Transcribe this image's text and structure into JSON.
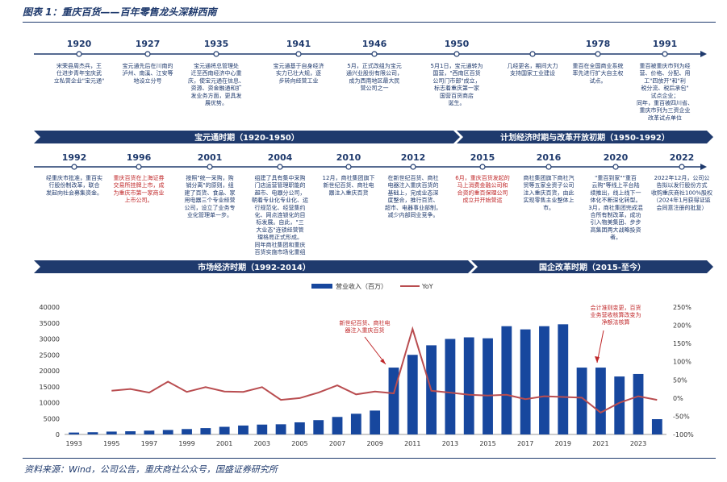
{
  "title": "图表 1：重庆百货——百年零售龙头深耕西南",
  "source": "资料来源：Wind，公司公告，重庆商社公众号，国盛证券研究所",
  "colors": {
    "navy": "#1f3a6d",
    "bar": "#17479e",
    "line": "#b94d50",
    "red": "#c0282a"
  },
  "timeline_top": {
    "events": [
      {
        "year": "1920",
        "lines": [
          "宋荣县周杰兵，王",
          "仕进步青年宝庆武",
          "立私营企业\"宝元通\""
        ],
        "red": false
      },
      {
        "year": "1927",
        "lines": [
          "宝元通先后在川南的",
          "泸州、南溪、江安等",
          "地设立分号"
        ],
        "red": false
      },
      {
        "year": "1935",
        "lines": [
          "宝元通将总管理处",
          "迁至西南经济中心重",
          "庆，使宝元通在信息、",
          "资源、资金融通和扩",
          "发业务方面，更具发",
          "展优势。"
        ],
        "red": false
      },
      {
        "year": "1941",
        "lines": [
          "宝元通基于自身经济",
          "实力已壮大规，逐",
          "步转向经营工业"
        ],
        "red": false
      },
      {
        "year": "1946",
        "lines": [
          "5月，正式改组为宝元",
          "通兴业股份有限公司，",
          "成为西南地区最大民",
          "营公司之一"
        ],
        "red": false
      },
      {
        "year": "1950",
        "lines": [
          "5月1日，宝元通转为",
          "国营，\"西南区百货",
          "公司门市部\"成立，",
          "标志着重庆第一家",
          "国营百货商店",
          "诞生。"
        ],
        "red": false
      },
      {
        "year": "",
        "lines": [
          "几经更名，期间大力",
          "支持国家工业建设"
        ],
        "red": false
      },
      {
        "year": "1978",
        "lines": [
          "重百在全国商业系统",
          "率先进行扩大自主权",
          "试点。"
        ],
        "red": false
      },
      {
        "year": "1991",
        "lines": [
          "重百被重庆市列为经",
          "营、价格、分配、用",
          "工\"四放开\"和\"利",
          "税分流、税后承包\"",
          "试点企业；",
          "同年，重百被四川省、",
          "重庆市列为三资企业",
          "改革试点单位"
        ],
        "red": false
      }
    ],
    "bands": [
      {
        "label": "宝元通时期（1920-1950）"
      },
      {
        "label": "计划经济时期与改革开放初期（1950-1992）"
      }
    ]
  },
  "timeline_bottom": {
    "events": [
      {
        "year": "1992",
        "lines": [
          "经重庆市批准，重百实",
          "行股份制改革，联合",
          "发起向社会募集资金。"
        ],
        "red": false
      },
      {
        "year": "1996",
        "lines": [
          "重庆百货在上海证券",
          "交易所挂牌上市，成",
          "为重庆市第一家商业",
          "上市公司。"
        ],
        "red": true
      },
      {
        "year": "2001",
        "lines": [
          "按照\"统一采购，购",
          "销分离\"的原则，组",
          "建了百货、食品、家",
          "用电器三个专业经营",
          "公司，设立了业务专",
          "业化管理单一步。"
        ],
        "red": false
      },
      {
        "year": "2004",
        "lines": [
          "组建了具有集中采购",
          "门店运营管理职能的",
          "超市、电器分公司，",
          "朝着专业化专业化、运",
          "行规范化、经营集约",
          "化、网点连锁化的目",
          "标发展。自此，\"三",
          "大业态\"连锁经营管",
          "理格局正式形成。",
          "同年商社集团和重庆",
          "百货实施市场化重组"
        ],
        "red": false
      },
      {
        "year": "2010",
        "lines": [
          "12月，商社集团旗下",
          "新世纪百货、商社电",
          "器注入重庆百货"
        ],
        "red": false
      },
      {
        "year": "2012",
        "lines": [
          "在新世纪百货、商社",
          "电器注入重庆百货的",
          "基础上，完成业态深",
          "度整合，推行百货、",
          "超市、电器事业部制，",
          "减少内部同业竞争。"
        ],
        "red": false
      },
      {
        "year": "2015",
        "lines": [
          "6月，重庆百货发起的",
          "马上消费金融公司和",
          "合资的重百保理公司",
          "成立并开始营运"
        ],
        "red": true
      },
      {
        "year": "2016",
        "lines": [
          "商社集团旗下商社汽",
          "贸等五家全资子公司",
          "注入重庆百货，由此",
          "实现零售主业整体上",
          "市。"
        ],
        "red": false
      },
      {
        "year": "2020",
        "lines": [
          "\"重百到家\"\"重百",
          "云购\"等线上平台陆",
          "续推出，线上线下一",
          "体化不断深化转型。",
          "3月，商社集团完成混",
          "合所有制改革，成功",
          "引入物美集团、步步",
          "高集团两大战略投资",
          "者。"
        ],
        "red": false
      },
      {
        "year": "2022",
        "lines": [
          "2022年12月，公司公",
          "告拟以发行股份方式",
          "收购重庆商社100%股权",
          "（2024年1月获得证监",
          "会同意注册的批复）"
        ],
        "red": false
      }
    ],
    "bands": [
      {
        "label": "市场经济时期（1992-2014）"
      },
      {
        "label": "国企改革时期（2015-至今）"
      }
    ]
  },
  "chart_data": {
    "type": "bar",
    "legend": [
      "营业收入（百万）",
      "YoY"
    ],
    "categories": [
      "1993",
      "1994",
      "1995",
      "1996",
      "1997",
      "1998",
      "1999",
      "2000",
      "2001",
      "2002",
      "2003",
      "2004",
      "2005",
      "2006",
      "2007",
      "2008",
      "2009",
      "2010",
      "2011",
      "2012",
      "2013",
      "2014",
      "2015",
      "2016",
      "2017",
      "2018",
      "2019",
      "2020",
      "2021",
      "2022",
      "2023",
      "2024"
    ],
    "x_tick_labels": [
      "1993",
      "1995",
      "1997",
      "1999",
      "2001",
      "2003",
      "2005",
      "2007",
      "2009",
      "2011",
      "2013",
      "2015",
      "2017",
      "2019",
      "2021",
      "2023"
    ],
    "series": [
      {
        "name": "营业收入（百万）",
        "axis": "left",
        "values": [
          600,
          700,
          900,
          1000,
          1200,
          1400,
          1700,
          2000,
          2400,
          2800,
          3100,
          3200,
          3800,
          4500,
          5500,
          6500,
          7500,
          21000,
          25000,
          28000,
          30000,
          30500,
          30200,
          34000,
          33000,
          34000,
          34600,
          21000,
          21000,
          18200,
          19000,
          4800
        ]
      },
      {
        "name": "YoY",
        "axis": "right",
        "type": "line",
        "values": [
          null,
          null,
          20,
          25,
          15,
          45,
          17,
          30,
          18,
          17,
          30,
          -5,
          0,
          15,
          35,
          10,
          18,
          13,
          190,
          20,
          15,
          9,
          7,
          9,
          -3,
          5,
          3,
          1,
          -40,
          -13,
          5,
          -5
        ]
      }
    ],
    "ylim_left": [
      0,
      40000
    ],
    "yticks_left": [
      "0",
      "5000",
      "10000",
      "15000",
      "20000",
      "25000",
      "30000",
      "35000",
      "40000"
    ],
    "ylim_right": [
      -100,
      250
    ],
    "yticks_right": [
      "-100%",
      "-50%",
      "0%",
      "50%",
      "100%",
      "150%",
      "200%",
      "250%"
    ],
    "annotations": [
      {
        "lines": [
          "新世纪百货、商社电",
          "器注入重庆百货"
        ],
        "x": "2010"
      },
      {
        "lines": [
          "会计准则变更，百货",
          "业务营收核算改变为",
          "净额法核算"
        ],
        "x": "2021"
      }
    ]
  }
}
